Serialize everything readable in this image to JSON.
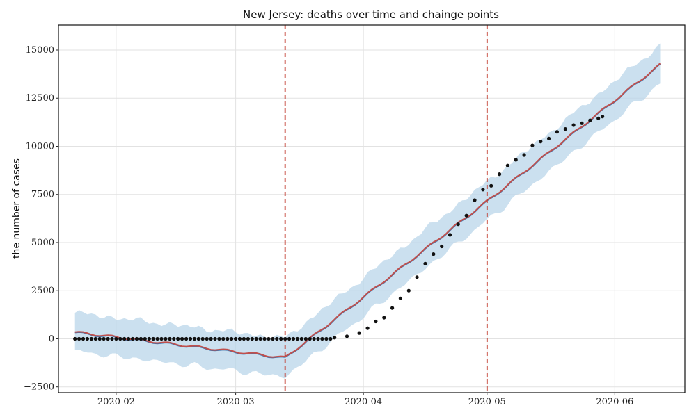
{
  "chart_data": {
    "type": "line",
    "title": "New Jersey: deaths over time and chainge points",
    "xlabel": "",
    "ylabel": "the number of cases",
    "x_range": [
      "2020-01-18",
      "2020-06-18"
    ],
    "ylim": [
      -2800,
      16300
    ],
    "x_ticks": [
      {
        "date": "2020-02-01",
        "label": "2020-02"
      },
      {
        "date": "2020-03-01",
        "label": "2020-03"
      },
      {
        "date": "2020-04-01",
        "label": "2020-04"
      },
      {
        "date": "2020-05-01",
        "label": "2020-05"
      },
      {
        "date": "2020-06-01",
        "label": "2020-06"
      }
    ],
    "y_ticks": [
      {
        "value": -2500,
        "label": "−2500"
      },
      {
        "value": 0,
        "label": "0"
      },
      {
        "value": 2500,
        "label": "2500"
      },
      {
        "value": 5000,
        "label": "5000"
      },
      {
        "value": 7500,
        "label": "7500"
      },
      {
        "value": 10000,
        "label": "10000"
      },
      {
        "value": 12500,
        "label": "12500"
      },
      {
        "value": 15000,
        "label": "15000"
      }
    ],
    "grid": true,
    "colors": {
      "observed": "#111111",
      "trend": "#c0504d",
      "forecast": "#3d6fa8",
      "interval": "#b9d6ea",
      "changepoint": "#c0392b"
    },
    "changepoints": [
      "2020-03-13",
      "2020-05-01"
    ],
    "trend": [
      {
        "date": "2020-01-22",
        "y": 350
      },
      {
        "date": "2020-03-13",
        "y": -980
      },
      {
        "date": "2020-05-01",
        "y": 7150
      },
      {
        "date": "2020-06-12",
        "y": 14250
      }
    ],
    "forecast_band_halfwidth": 1000,
    "observed": [
      {
        "date": "2020-03-25",
        "y": 60
      },
      {
        "date": "2020-03-28",
        "y": 130
      },
      {
        "date": "2020-03-31",
        "y": 300
      },
      {
        "date": "2020-04-02",
        "y": 550
      },
      {
        "date": "2020-04-04",
        "y": 900
      },
      {
        "date": "2020-04-06",
        "y": 1100
      },
      {
        "date": "2020-04-08",
        "y": 1600
      },
      {
        "date": "2020-04-10",
        "y": 2100
      },
      {
        "date": "2020-04-12",
        "y": 2500
      },
      {
        "date": "2020-04-14",
        "y": 3200
      },
      {
        "date": "2020-04-16",
        "y": 3900
      },
      {
        "date": "2020-04-18",
        "y": 4400
      },
      {
        "date": "2020-04-20",
        "y": 4800
      },
      {
        "date": "2020-04-22",
        "y": 5400
      },
      {
        "date": "2020-04-24",
        "y": 5950
      },
      {
        "date": "2020-04-26",
        "y": 6400
      },
      {
        "date": "2020-04-28",
        "y": 7200
      },
      {
        "date": "2020-04-30",
        "y": 7750
      },
      {
        "date": "2020-05-02",
        "y": 7950
      },
      {
        "date": "2020-05-04",
        "y": 8550
      },
      {
        "date": "2020-05-06",
        "y": 9000
      },
      {
        "date": "2020-05-08",
        "y": 9300
      },
      {
        "date": "2020-05-10",
        "y": 9550
      },
      {
        "date": "2020-05-12",
        "y": 10050
      },
      {
        "date": "2020-05-14",
        "y": 10250
      },
      {
        "date": "2020-05-16",
        "y": 10400
      },
      {
        "date": "2020-05-18",
        "y": 10750
      },
      {
        "date": "2020-05-20",
        "y": 10900
      },
      {
        "date": "2020-05-22",
        "y": 11100
      },
      {
        "date": "2020-05-24",
        "y": 11200
      },
      {
        "date": "2020-05-26",
        "y": 11350
      },
      {
        "date": "2020-05-28",
        "y": 11450
      },
      {
        "date": "2020-05-29",
        "y": 11550
      }
    ],
    "observed_zero_start": "2020-01-22",
    "observed_zero_end": "2020-03-24"
  }
}
